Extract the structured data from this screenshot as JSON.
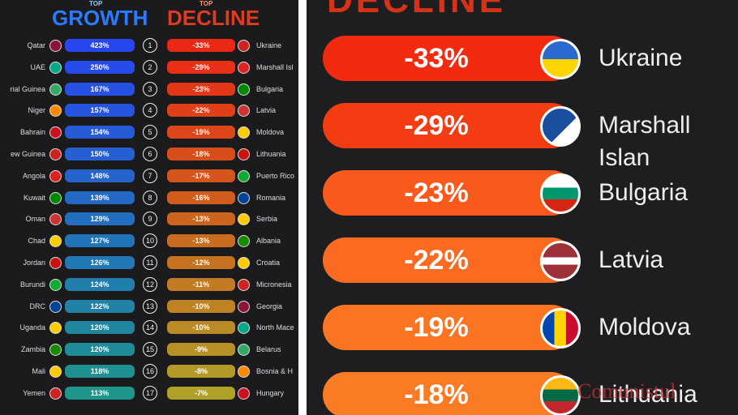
{
  "left": {
    "growth_top": "TOP",
    "growth_title": "GROWTH",
    "decline_top": "TOP",
    "decline_title": "DECLINE",
    "rows": [
      {
        "rank": "1",
        "growth_country": "Qatar",
        "growth": "423%",
        "decline": "-33%",
        "decline_country": "Ukraine"
      },
      {
        "rank": "2",
        "growth_country": "UAE",
        "growth": "250%",
        "decline": "-29%",
        "decline_country": "Marshall Isl"
      },
      {
        "rank": "3",
        "growth_country": "rial Guinea",
        "growth": "167%",
        "decline": "-23%",
        "decline_country": "Bulgaria"
      },
      {
        "rank": "4",
        "growth_country": "Niger",
        "growth": "157%",
        "decline": "-22%",
        "decline_country": "Latvia"
      },
      {
        "rank": "5",
        "growth_country": "Bahrain",
        "growth": "154%",
        "decline": "-19%",
        "decline_country": "Moldova"
      },
      {
        "rank": "6",
        "growth_country": "ew Guinea",
        "growth": "150%",
        "decline": "-18%",
        "decline_country": "Lithuania"
      },
      {
        "rank": "7",
        "growth_country": "Angola",
        "growth": "148%",
        "decline": "-17%",
        "decline_country": "Puerto Rico"
      },
      {
        "rank": "8",
        "growth_country": "Kuwait",
        "growth": "139%",
        "decline": "-16%",
        "decline_country": "Romania"
      },
      {
        "rank": "9",
        "growth_country": "Oman",
        "growth": "129%",
        "decline": "-13%",
        "decline_country": "Serbia"
      },
      {
        "rank": "10",
        "growth_country": "Chad",
        "growth": "127%",
        "decline": "-13%",
        "decline_country": "Albania"
      },
      {
        "rank": "11",
        "growth_country": "Jordan",
        "growth": "126%",
        "decline": "-12%",
        "decline_country": "Croatia"
      },
      {
        "rank": "12",
        "growth_country": "Burundi",
        "growth": "124%",
        "decline": "-11%",
        "decline_country": "Micronesia"
      },
      {
        "rank": "13",
        "growth_country": "DRC",
        "growth": "122%",
        "decline": "-10%",
        "decline_country": "Georgia"
      },
      {
        "rank": "14",
        "growth_country": "Uganda",
        "growth": "120%",
        "decline": "-10%",
        "decline_country": "North Mace"
      },
      {
        "rank": "15",
        "growth_country": "Zambia",
        "growth": "120%",
        "decline": "-9%",
        "decline_country": "Belarus"
      },
      {
        "rank": "16",
        "growth_country": "Mali",
        "growth": "118%",
        "decline": "-8%",
        "decline_country": "Bosnia & H"
      },
      {
        "rank": "17",
        "growth_country": "Yemen",
        "growth": "113%",
        "decline": "-7%",
        "decline_country": "Hungary"
      }
    ]
  },
  "right": {
    "title": "DECLINE",
    "rows": [
      {
        "decline": "-33%",
        "country": "Ukraine"
      },
      {
        "decline": "-29%",
        "country": "Marshall Islan"
      },
      {
        "decline": "-23%",
        "country": "Bulgaria"
      },
      {
        "decline": "-22%",
        "country": "Latvia"
      },
      {
        "decline": "-19%",
        "country": "Moldova"
      },
      {
        "decline": "-18%",
        "country": "Lithuania"
      }
    ]
  },
  "watermark": "Comunistul"
}
